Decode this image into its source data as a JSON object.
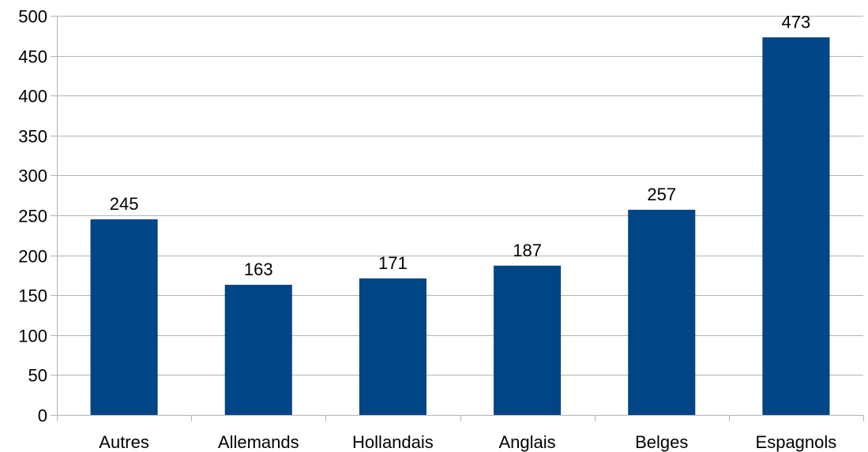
{
  "chart_data": {
    "type": "bar",
    "title": "",
    "xlabel": "",
    "ylabel": "",
    "categories": [
      "Autres",
      "Allemands",
      "Hollandais",
      "Anglais",
      "Belges",
      "Espagnols"
    ],
    "values": [
      245,
      163,
      171,
      187,
      257,
      473
    ],
    "ylim": [
      0,
      500
    ],
    "yticks": [
      0,
      50,
      100,
      150,
      200,
      250,
      300,
      350,
      400,
      450,
      500
    ],
    "data_labels": [
      "245",
      "163",
      "171",
      "187",
      "257",
      "473"
    ],
    "grid": "horizontal",
    "legend": "none",
    "bar_color": "#004586"
  }
}
